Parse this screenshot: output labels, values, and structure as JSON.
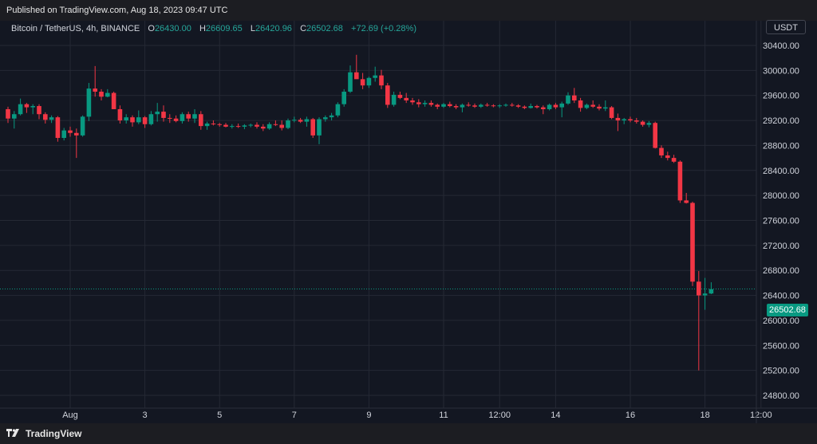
{
  "header": {
    "published_text": "Published on TradingView.com, Aug 18, 2023 09:47 UTC"
  },
  "footer": {
    "brand_name": "TradingView"
  },
  "colors": {
    "up": "#089981",
    "down": "#f23645",
    "grid": "#252934",
    "background": "#131722"
  },
  "chart_data": {
    "type": "candlestick",
    "symbol": "Bitcoin / TetherUS",
    "interval": "4h",
    "exchange": "BINANCE",
    "currency": "USDT",
    "ohlc_label": {
      "open_label": "O",
      "open": "26430.00",
      "high_label": "H",
      "high": "26609.65",
      "low_label": "L",
      "low": "26420.96",
      "close_label": "C",
      "close": "26502.68",
      "change": "+72.69 (+0.28%)"
    },
    "last_price": 26502.68,
    "last_price_label": "26502.68",
    "ylim": [
      24700,
      30700
    ],
    "y_ticks": [
      24800,
      25200,
      25600,
      26000,
      26400,
      26800,
      27200,
      27600,
      28000,
      28400,
      28800,
      29200,
      29600,
      30000,
      30400
    ],
    "y_tick_labels": [
      "24800.00",
      "25200.00",
      "25600.00",
      "26000.00",
      "26400.00",
      "26800.00",
      "27200.00",
      "27600.00",
      "28000.00",
      "28400.00",
      "28800.00",
      "29200.00",
      "29600.00",
      "30000.00",
      "30400.00"
    ],
    "x_ticks": [
      {
        "label": "Aug",
        "index": 10
      },
      {
        "label": "3",
        "index": 22
      },
      {
        "label": "5",
        "index": 34
      },
      {
        "label": "7",
        "index": 46
      },
      {
        "label": "9",
        "index": 58
      },
      {
        "label": "11",
        "index": 70
      },
      {
        "label": "12:00",
        "index": 79
      },
      {
        "label": "14",
        "index": 88
      },
      {
        "label": "16",
        "index": 100
      },
      {
        "label": "18",
        "index": 112
      },
      {
        "label": "12:00",
        "index": 121
      }
    ],
    "candles": [
      [
        29380,
        29420,
        29160,
        29230
      ],
      [
        29230,
        29350,
        29070,
        29300
      ],
      [
        29300,
        29550,
        29280,
        29460
      ],
      [
        29460,
        29480,
        29320,
        29410
      ],
      [
        29410,
        29460,
        29300,
        29430
      ],
      [
        29430,
        29460,
        29220,
        29300
      ],
      [
        29300,
        29330,
        29150,
        29210
      ],
      [
        29210,
        29280,
        29160,
        29250
      ],
      [
        29250,
        29270,
        28860,
        28920
      ],
      [
        28920,
        29080,
        28880,
        29040
      ],
      [
        29040,
        29100,
        28940,
        29000
      ],
      [
        29000,
        29070,
        28600,
        28960
      ],
      [
        28960,
        29280,
        28940,
        29260
      ],
      [
        29260,
        29800,
        29190,
        29710
      ],
      [
        29710,
        30070,
        29580,
        29660
      ],
      [
        29660,
        29700,
        29520,
        29580
      ],
      [
        29580,
        29700,
        29570,
        29640
      ],
      [
        29640,
        29660,
        29380,
        29380
      ],
      [
        29380,
        29440,
        29150,
        29200
      ],
      [
        29200,
        29300,
        29150,
        29250
      ],
      [
        29250,
        29280,
        29100,
        29170
      ],
      [
        29170,
        29360,
        29140,
        29250
      ],
      [
        29250,
        29270,
        29080,
        29140
      ],
      [
        29140,
        29350,
        29120,
        29300
      ],
      [
        29300,
        29480,
        29180,
        29340
      ],
      [
        29340,
        29440,
        29180,
        29240
      ],
      [
        29240,
        29300,
        29160,
        29230
      ],
      [
        29230,
        29280,
        29170,
        29190
      ],
      [
        29190,
        29330,
        29150,
        29300
      ],
      [
        29300,
        29340,
        29180,
        29230
      ],
      [
        29230,
        29380,
        29160,
        29300
      ],
      [
        29300,
        29350,
        29050,
        29110
      ],
      [
        29110,
        29180,
        29050,
        29150
      ],
      [
        29150,
        29200,
        29120,
        29140
      ],
      [
        29140,
        29160,
        29100,
        29130
      ],
      [
        29130,
        29160,
        29090,
        29100
      ],
      [
        29100,
        29140,
        29070,
        29110
      ],
      [
        29110,
        29150,
        29080,
        29100
      ],
      [
        29100,
        29140,
        29060,
        29120
      ],
      [
        29120,
        29150,
        29090,
        29130
      ],
      [
        29130,
        29170,
        29070,
        29100
      ],
      [
        29100,
        29140,
        29030,
        29070
      ],
      [
        29070,
        29170,
        29050,
        29140
      ],
      [
        29140,
        29200,
        29110,
        29130
      ],
      [
        29130,
        29200,
        29040,
        29080
      ],
      [
        29080,
        29230,
        29060,
        29200
      ],
      [
        29200,
        29260,
        29170,
        29210
      ],
      [
        29210,
        29240,
        29160,
        29180
      ],
      [
        29180,
        29260,
        29100,
        29220
      ],
      [
        29220,
        29240,
        28920,
        28960
      ],
      [
        28960,
        29250,
        28820,
        29220
      ],
      [
        29220,
        29280,
        29180,
        29250
      ],
      [
        29250,
        29320,
        29200,
        29280
      ],
      [
        29280,
        29490,
        29250,
        29460
      ],
      [
        29460,
        29700,
        29420,
        29660
      ],
      [
        29660,
        30080,
        29640,
        29970
      ],
      [
        29970,
        30250,
        29880,
        29860
      ],
      [
        29860,
        29960,
        29700,
        29760
      ],
      [
        29760,
        29900,
        29720,
        29880
      ],
      [
        29880,
        30060,
        29820,
        29920
      ],
      [
        29920,
        30010,
        29700,
        29760
      ],
      [
        29760,
        29800,
        29400,
        29450
      ],
      [
        29450,
        29660,
        29420,
        29610
      ],
      [
        29610,
        29660,
        29540,
        29560
      ],
      [
        29560,
        29640,
        29480,
        29520
      ],
      [
        29520,
        29560,
        29450,
        29490
      ],
      [
        29490,
        29540,
        29410,
        29460
      ],
      [
        29460,
        29520,
        29420,
        29480
      ],
      [
        29480,
        29520,
        29420,
        29450
      ],
      [
        29450,
        29470,
        29380,
        29420
      ],
      [
        29420,
        29480,
        29400,
        29460
      ],
      [
        29460,
        29500,
        29410,
        29430
      ],
      [
        29430,
        29460,
        29380,
        29410
      ],
      [
        29410,
        29470,
        29330,
        29450
      ],
      [
        29450,
        29490,
        29420,
        29440
      ],
      [
        29440,
        29470,
        29400,
        29420
      ],
      [
        29420,
        29470,
        29400,
        29450
      ],
      [
        29450,
        29480,
        29420,
        29440
      ],
      [
        29440,
        29460,
        29410,
        29430
      ],
      [
        29430,
        29460,
        29400,
        29440
      ],
      [
        29440,
        29470,
        29420,
        29450
      ],
      [
        29450,
        29480,
        29420,
        29440
      ],
      [
        29440,
        29460,
        29400,
        29420
      ],
      [
        29420,
        29440,
        29380,
        29400
      ],
      [
        29400,
        29470,
        29390,
        29430
      ],
      [
        29430,
        29450,
        29390,
        29410
      ],
      [
        29410,
        29440,
        29300,
        29380
      ],
      [
        29380,
        29470,
        29360,
        29450
      ],
      [
        29450,
        29480,
        29380,
        29410
      ],
      [
        29410,
        29500,
        29250,
        29470
      ],
      [
        29470,
        29650,
        29450,
        29600
      ],
      [
        29600,
        29720,
        29480,
        29520
      ],
      [
        29520,
        29560,
        29340,
        29400
      ],
      [
        29400,
        29470,
        29380,
        29450
      ],
      [
        29450,
        29520,
        29400,
        29420
      ],
      [
        29420,
        29460,
        29360,
        29390
      ],
      [
        29390,
        29520,
        29350,
        29410
      ],
      [
        29410,
        29430,
        29220,
        29240
      ],
      [
        29240,
        29310,
        29030,
        29200
      ],
      [
        29200,
        29240,
        29140,
        29220
      ],
      [
        29220,
        29260,
        29170,
        29200
      ],
      [
        29200,
        29240,
        29150,
        29180
      ],
      [
        29180,
        29200,
        29100,
        29130
      ],
      [
        29130,
        29190,
        29090,
        29160
      ],
      [
        29160,
        29180,
        28750,
        28760
      ],
      [
        28760,
        28800,
        28600,
        28640
      ],
      [
        28640,
        28700,
        28560,
        28600
      ],
      [
        28600,
        28650,
        28520,
        28540
      ],
      [
        28540,
        28560,
        27880,
        27920
      ],
      [
        27920,
        28040,
        27870,
        27880
      ],
      [
        27880,
        27900,
        26550,
        26620
      ],
      [
        26620,
        26790,
        25200,
        26400
      ],
      [
        26400,
        26680,
        26170,
        26430
      ],
      [
        26430,
        26610,
        26420,
        26500
      ]
    ]
  }
}
